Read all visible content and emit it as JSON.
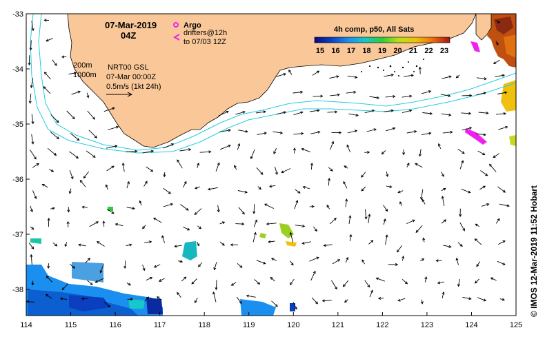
{
  "map": {
    "date": "07-Mar-2019",
    "time": "04Z",
    "legend": {
      "argo_label": "Argo",
      "drifter_label_1": "drifters@12h",
      "drifter_label_2": "to 07/03 12Z"
    },
    "depth_labels": [
      "200m",
      "1000m"
    ],
    "info": {
      "line1": "NRT00 GSL",
      "line2": "07-Mar 00:00Z",
      "scale": "0.5m/s (1kt 24h)"
    },
    "colorbar": {
      "title": "4h comp, p50, All Sats",
      "ticks": [
        "15",
        "16",
        "17",
        "18",
        "19",
        "20",
        "21",
        "22",
        "23"
      ],
      "colors": [
        "#0a0a80",
        "#0b3fc0",
        "#1a8ff0",
        "#17c7c9",
        "#2ecc40",
        "#b8e018",
        "#f0c010",
        "#f07010",
        "#c02010",
        "#701010"
      ]
    },
    "lon_ticks": [
      "114",
      "115",
      "116",
      "117",
      "118",
      "119",
      "120",
      "121",
      "122",
      "123",
      "124",
      "125"
    ],
    "lat_ticks": [
      "-33",
      "-34",
      "-35",
      "-36",
      "-37",
      "-38"
    ],
    "lon_range": [
      114,
      125
    ],
    "lat_range": [
      -38.5,
      -33
    ],
    "credit": "© IMOS 12-Mar-2019 11:52 Hobart",
    "land_color": "#fac898",
    "contour_color": "#22ccdd",
    "argo_color": "#ee22ee"
  }
}
